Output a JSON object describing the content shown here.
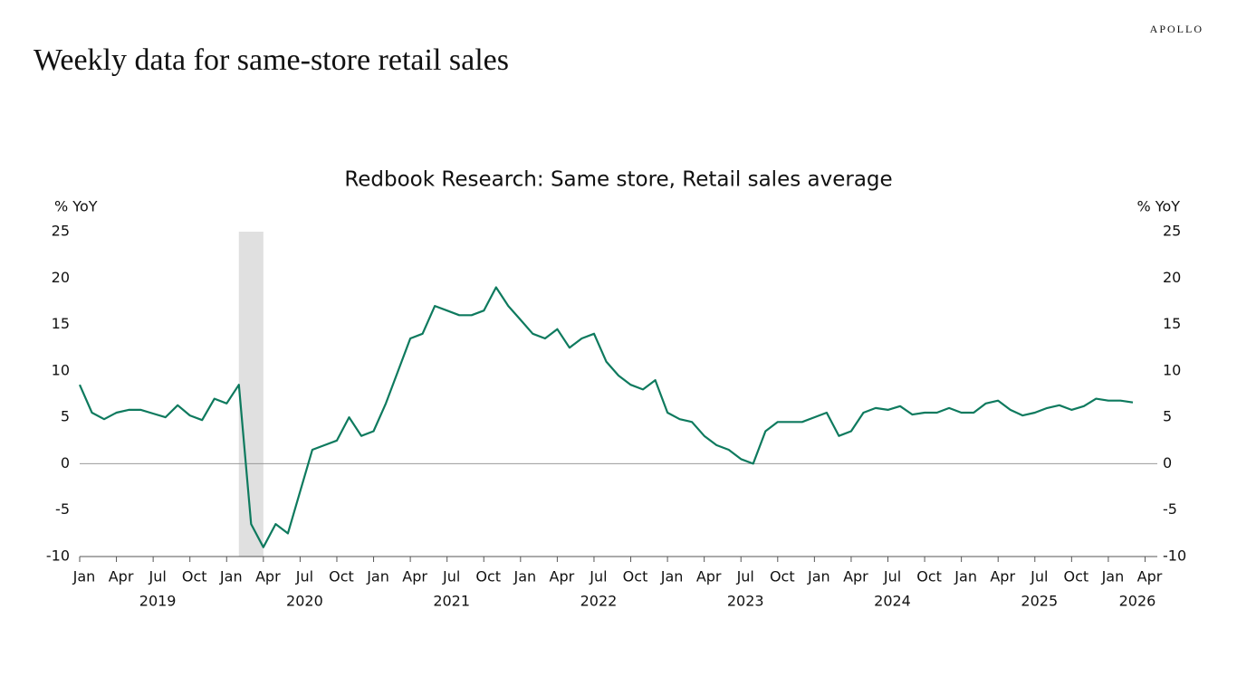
{
  "brand": "APOLLO",
  "headline": "Weekly data for same-store retail sales",
  "chart_data": {
    "type": "line",
    "title": "Redbook Research: Same store, Retail sales average",
    "y_label": "% YoY",
    "y2_label": "% YoY",
    "color": "#0e7a5e",
    "x": [
      "2019-01",
      "2019-02",
      "2019-03",
      "2019-04",
      "2019-05",
      "2019-06",
      "2019-07",
      "2019-08",
      "2019-09",
      "2019-10",
      "2019-11",
      "2019-12",
      "2020-01",
      "2020-02",
      "2020-03",
      "2020-04",
      "2020-05",
      "2020-06",
      "2020-07",
      "2020-08",
      "2020-09",
      "2020-10",
      "2020-11",
      "2020-12",
      "2021-01",
      "2021-02",
      "2021-03",
      "2021-04",
      "2021-05",
      "2021-06",
      "2021-07",
      "2021-08",
      "2021-09",
      "2021-10",
      "2021-11",
      "2021-12",
      "2022-01",
      "2022-02",
      "2022-03",
      "2022-04",
      "2022-05",
      "2022-06",
      "2022-07",
      "2022-08",
      "2022-09",
      "2022-10",
      "2022-11",
      "2022-12",
      "2023-01",
      "2023-02",
      "2023-03",
      "2023-04",
      "2023-05",
      "2023-06",
      "2023-07",
      "2023-08",
      "2023-09",
      "2023-10",
      "2023-11",
      "2023-12",
      "2024-01",
      "2024-02",
      "2024-03",
      "2024-04",
      "2024-05",
      "2024-06",
      "2024-07",
      "2024-08",
      "2024-09",
      "2024-10",
      "2024-11",
      "2024-12",
      "2025-01",
      "2025-02",
      "2025-03",
      "2025-04",
      "2025-05",
      "2025-06",
      "2025-07",
      "2025-08",
      "2025-09",
      "2025-10",
      "2025-11",
      "2025-12",
      "2026-01",
      "2026-02",
      "2026-03"
    ],
    "values": [
      8.5,
      5.5,
      4.8,
      5.5,
      5.8,
      5.8,
      5.4,
      5.0,
      6.3,
      5.2,
      4.7,
      7.0,
      6.5,
      8.5,
      -6.5,
      -9.0,
      -6.5,
      -7.5,
      -3.0,
      1.5,
      2.0,
      2.5,
      5.0,
      3.0,
      3.5,
      6.5,
      10.0,
      13.5,
      14.0,
      17.0,
      16.5,
      16.0,
      16.0,
      16.5,
      19.0,
      17.0,
      15.5,
      14.0,
      13.5,
      14.5,
      12.5,
      13.5,
      14.0,
      11.0,
      9.5,
      8.5,
      8.0,
      9.0,
      5.5,
      4.8,
      4.5,
      3.0,
      2.0,
      1.5,
      0.5,
      0.0,
      3.5,
      4.5,
      4.5,
      4.5,
      5.0,
      5.5,
      3.0,
      3.5,
      5.5,
      6.0,
      5.8,
      6.2,
      5.3,
      5.5,
      5.5,
      6.0,
      5.5,
      5.5,
      6.5,
      6.8,
      5.8,
      5.2,
      5.5,
      6.0,
      6.3,
      5.8,
      6.2,
      7.0,
      6.8,
      6.8,
      6.6
    ],
    "recession": [
      "2020-02",
      "2020-04"
    ],
    "hline": 0,
    "xlim": [
      "2019-01",
      "2026-05"
    ],
    "xticks": [
      {
        "value": "2019-01",
        "label": "Jan"
      },
      {
        "value": "2019-04",
        "label": "Apr"
      },
      {
        "value": "2019-07",
        "label": "Jul"
      },
      {
        "value": "2019-10",
        "label": "Oct"
      },
      {
        "value": "2020-01",
        "label": "Jan"
      },
      {
        "value": "2020-04",
        "label": "Apr"
      },
      {
        "value": "2020-07",
        "label": "Jul"
      },
      {
        "value": "2020-10",
        "label": "Oct"
      },
      {
        "value": "2021-01",
        "label": "Jan"
      },
      {
        "value": "2021-04",
        "label": "Apr"
      },
      {
        "value": "2021-07",
        "label": "Jul"
      },
      {
        "value": "2021-10",
        "label": "Oct"
      },
      {
        "value": "2022-01",
        "label": "Jan"
      },
      {
        "value": "2022-04",
        "label": "Apr"
      },
      {
        "value": "2022-07",
        "label": "Jul"
      },
      {
        "value": "2022-10",
        "label": "Oct"
      },
      {
        "value": "2023-01",
        "label": "Jan"
      },
      {
        "value": "2023-04",
        "label": "Apr"
      },
      {
        "value": "2023-07",
        "label": "Jul"
      },
      {
        "value": "2023-10",
        "label": "Oct"
      },
      {
        "value": "2024-01",
        "label": "Jan"
      },
      {
        "value": "2024-04",
        "label": "Apr"
      },
      {
        "value": "2024-07",
        "label": "Jul"
      },
      {
        "value": "2024-10",
        "label": "Oct"
      },
      {
        "value": "2025-01",
        "label": "Jan"
      },
      {
        "value": "2025-04",
        "label": "Apr"
      },
      {
        "value": "2025-07",
        "label": "Jul"
      },
      {
        "value": "2025-10",
        "label": "Oct"
      },
      {
        "value": "2026-01",
        "label": "Jan"
      },
      {
        "value": "2026-04",
        "label": "Apr"
      }
    ],
    "years": [
      "2019",
      "2020",
      "2021",
      "2022",
      "2023",
      "2024",
      "2025",
      "2026"
    ],
    "ylim": [
      -10,
      25
    ],
    "yticks": [
      -10,
      -5,
      0,
      5,
      10,
      15,
      20,
      25
    ],
    "y2lim": [
      -10,
      25
    ],
    "y2ticks": [
      -10,
      -5,
      0,
      5,
      10,
      15,
      20,
      25
    ]
  }
}
